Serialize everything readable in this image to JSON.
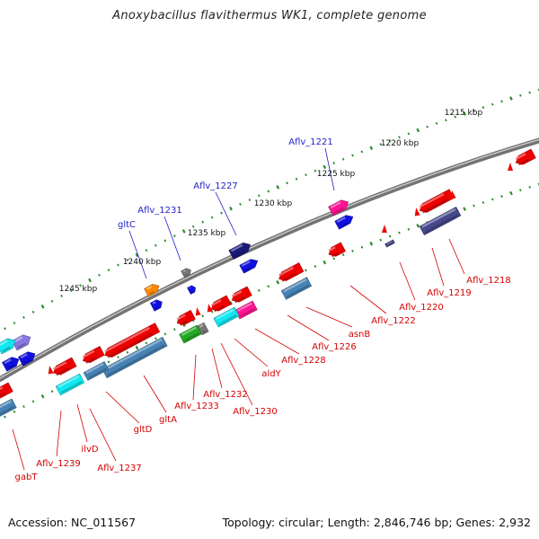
{
  "title": "Anoxybacillus flavithermus WK1, complete genome",
  "footer": {
    "accession": "Accession: NC_011567",
    "topology": "Topology: circular; Length: 2,846,746 bp; Genes: 2,932"
  },
  "scale_labels": [
    "1215 kbp",
    "1220 kbp",
    "1225 kbp",
    "1230 kbp",
    "1235 kbp",
    "1240 kbp",
    "1245 kbp"
  ],
  "top_labels": [
    "Aflv_1221",
    "Aflv_1227",
    "Aflv_1231",
    "gltC"
  ],
  "bottom_labels": [
    "Aflv_1218",
    "Aflv_1219",
    "Aflv_1220",
    "Aflv_1222",
    "asnB",
    "Aflv_1226",
    "Aflv_1228",
    "aldY",
    "Aflv_1230",
    "Aflv_1232",
    "Aflv_1233",
    "gltA",
    "gltD",
    "Aflv_1237",
    "ilvD",
    "Aflv_1239",
    "gabT"
  ],
  "colors": {
    "red": "#ee0000",
    "blue": "#1010e0",
    "navy": "#1a1a7a",
    "cyan": "#10e8f0",
    "steel": "#4682b4",
    "pink": "#ff1493",
    "green": "#22aa22",
    "orange": "#ff8800",
    "grey": "#777777",
    "slate": "#48488c",
    "lavender": "#8878e0",
    "label_red": "#d40000",
    "label_blue": "#1f1fc8",
    "dots": "#2a8a2a"
  }
}
